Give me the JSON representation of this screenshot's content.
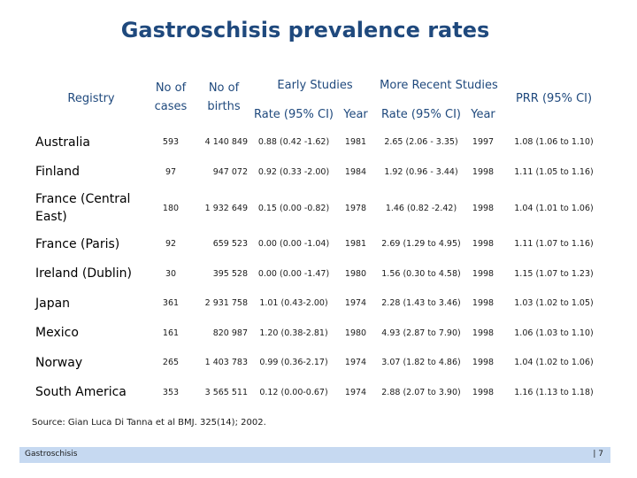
{
  "slide": {
    "title": "Gastroschisis prevalence rates",
    "source": "Source: Gian Luca Di Tanna et al BMJ. 325(14); 2002.",
    "footer_left": "Gastroschisis",
    "footer_right": "| 7"
  },
  "table": {
    "headers": {
      "registry": "Registry",
      "cases": "No of cases",
      "births": "No of births",
      "early": "Early Studies",
      "recent": "More Recent Studies",
      "rate1": "Rate (95% CI)",
      "year1": "Year",
      "rate2": "Rate (95% CI)",
      "year2": "Year",
      "prr": "PRR (95% CI)"
    },
    "rows": [
      {
        "registry": "Australia",
        "cases": "593",
        "births": "4 140 849",
        "rate1": "0.88 (0.42 -1.62)",
        "year1": "1981",
        "rate2": "2.65 (2.06 - 3.35)",
        "year2": "1997",
        "prr": "1.08 (1.06 to 1.10)"
      },
      {
        "registry": "Finland",
        "cases": "97",
        "births": "947 072",
        "rate1": "0.92 (0.33 -2.00)",
        "year1": "1984",
        "rate2": "1.92 (0.96 - 3.44)",
        "year2": "1998",
        "prr": "1.11 (1.05 to 1.16)"
      },
      {
        "registry": "France (Central East)",
        "cases": "180",
        "births": "1 932 649",
        "rate1": "0.15 (0.00 -0.82)",
        "year1": "1978",
        "rate2": "1.46 (0.82 -2.42)",
        "year2": "1998",
        "prr": "1.04 (1.01 to 1.06)"
      },
      {
        "registry": "France (Paris)",
        "cases": "92",
        "births": "659 523",
        "rate1": "0.00 (0.00 -1.04)",
        "year1": "1981",
        "rate2": "2.69 (1.29 to 4.95)",
        "year2": "1998",
        "prr": "1.11 (1.07 to 1.16)"
      },
      {
        "registry": "Ireland (Dublin)",
        "cases": "30",
        "births": "395 528",
        "rate1": "0.00 (0.00 -1.47)",
        "year1": "1980",
        "rate2": "1.56 (0.30 to 4.58)",
        "year2": "1998",
        "prr": "1.15 (1.07 to 1.23)"
      },
      {
        "registry": "Japan",
        "cases": "361",
        "births": "2 931 758",
        "rate1": "1.01 (0.43-2.00)",
        "year1": "1974",
        "rate2": "2.28 (1.43 to 3.46)",
        "year2": "1998",
        "prr": "1.03 (1.02 to 1.05)"
      },
      {
        "registry": "Mexico",
        "cases": "161",
        "births": "820 987",
        "rate1": "1.20 (0.38-2.81)",
        "year1": "1980",
        "rate2": "4.93 (2.87 to 7.90)",
        "year2": "1998",
        "prr": "1.06 (1.03 to 1.10)"
      },
      {
        "registry": "Norway",
        "cases": "265",
        "births": "1 403 783",
        "rate1": "0.99 (0.36-2.17)",
        "year1": "1974",
        "rate2": "3.07 (1.82 to 4.86)",
        "year2": "1998",
        "prr": "1.04 (1.02 to 1.06)"
      },
      {
        "registry": "South America",
        "cases": "353",
        "births": "3 565 511",
        "rate1": "0.12 (0.00-0.67)",
        "year1": "1974",
        "rate2": "2.88 (2.07 to 3.90)",
        "year2": "1998",
        "prr": "1.16 (1.13 to 1.18)"
      }
    ]
  }
}
